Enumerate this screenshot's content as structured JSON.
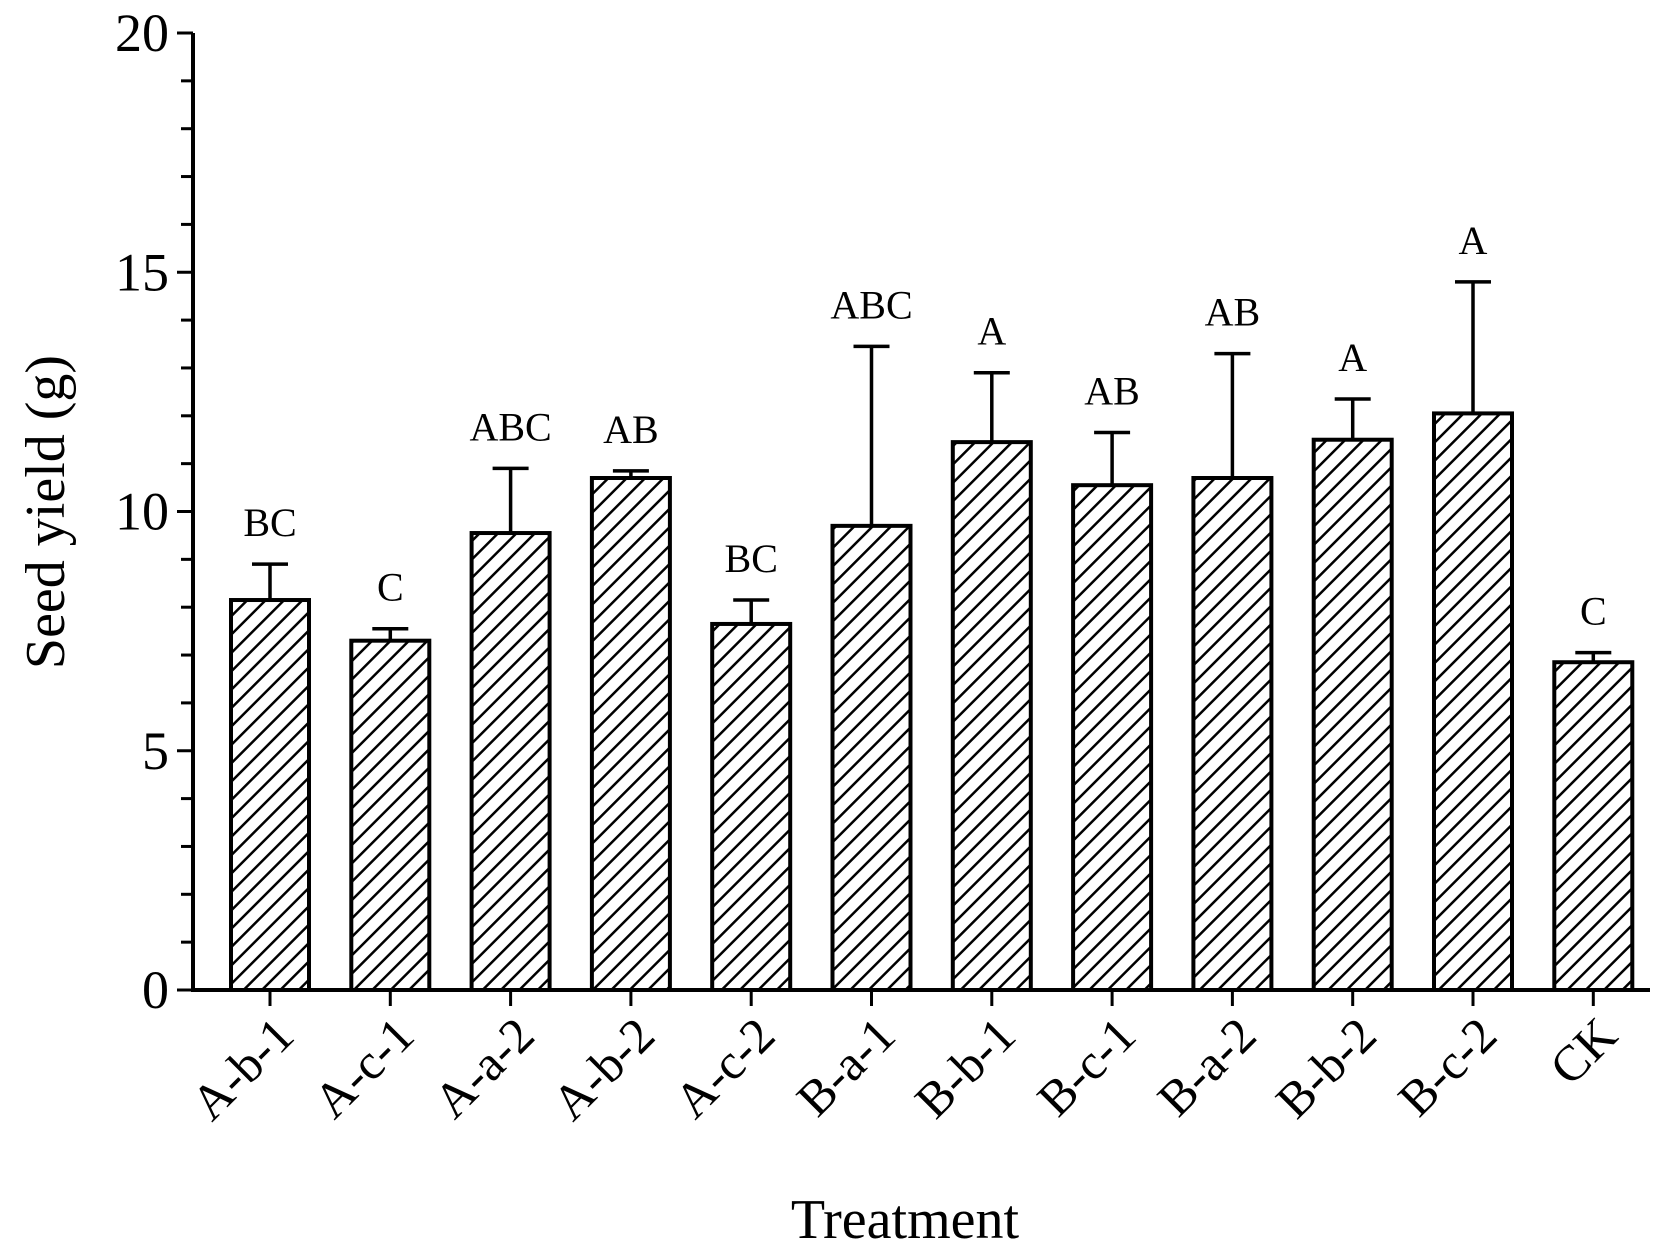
{
  "chart_data": {
    "type": "bar",
    "title": "",
    "xlabel": "Treatment",
    "ylabel": "Seed yield (g)",
    "ylim": [
      0,
      20
    ],
    "yticks": [
      0,
      5,
      10,
      15,
      20
    ],
    "categories": [
      "A-b-1",
      "A-c-1",
      "A-a-2",
      "A-b-2",
      "A-c-2",
      "B-a-1",
      "B-b-1",
      "B-c-1",
      "B-a-2",
      "B-b-2",
      "B-c-2",
      "CK"
    ],
    "values": [
      8.15,
      7.3,
      9.55,
      10.7,
      7.65,
      9.7,
      11.45,
      10.55,
      10.7,
      11.5,
      12.05,
      6.85
    ],
    "error": [
      0.75,
      0.25,
      1.35,
      0.15,
      0.5,
      3.75,
      1.45,
      1.1,
      2.6,
      0.85,
      2.75,
      0.2
    ],
    "significance": [
      "BC",
      "C",
      "ABC",
      "AB",
      "BC",
      "ABC",
      "A",
      "AB",
      "AB",
      "A",
      "A",
      "C"
    ],
    "bar_fill": "hatched",
    "colors": {
      "bar_edge": "#000000",
      "hatch": "#000000",
      "background": "#ffffff"
    },
    "grid": false,
    "legend": "none"
  }
}
